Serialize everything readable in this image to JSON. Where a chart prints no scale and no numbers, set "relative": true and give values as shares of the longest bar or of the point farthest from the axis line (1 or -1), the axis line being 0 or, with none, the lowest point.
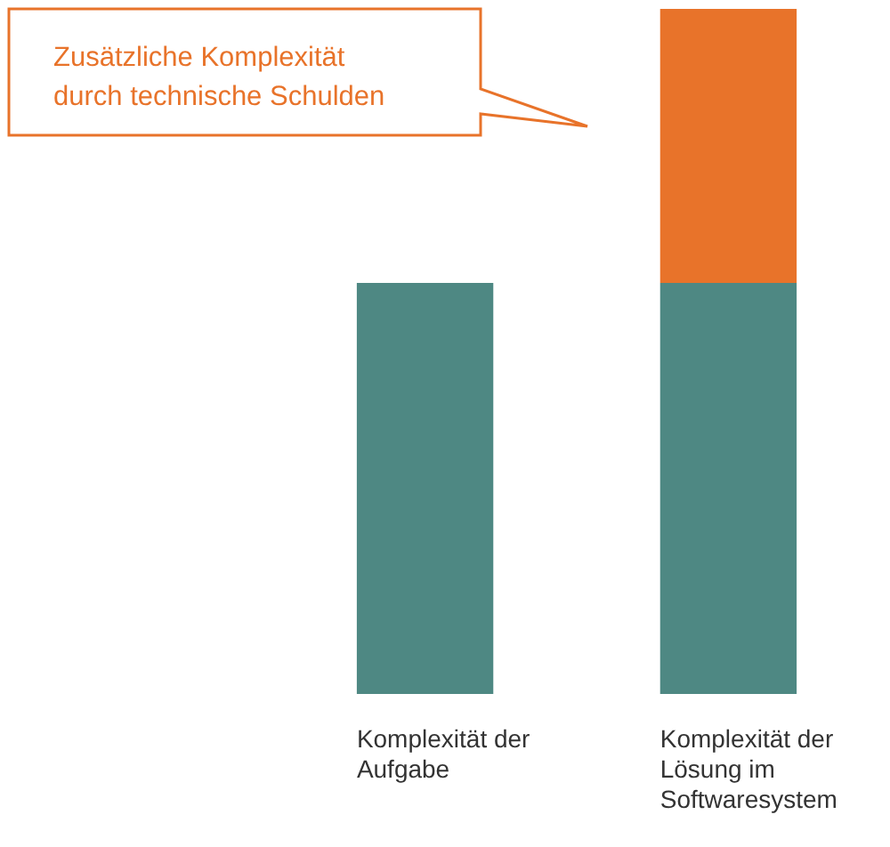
{
  "chart_data": {
    "type": "bar",
    "stacked": true,
    "relative": true,
    "categories": [
      "Komplexität der Aufgabe",
      "Komplexität der Lösung im Softwaresystem"
    ],
    "series": [
      {
        "color": "#4e8883",
        "values": [
          0.6,
          0.6
        ]
      },
      {
        "name": "Zusätzliche Komplexität durch technische Schulden",
        "color": "#e8732a",
        "values": [
          null,
          0.4
        ]
      }
    ]
  }
}
